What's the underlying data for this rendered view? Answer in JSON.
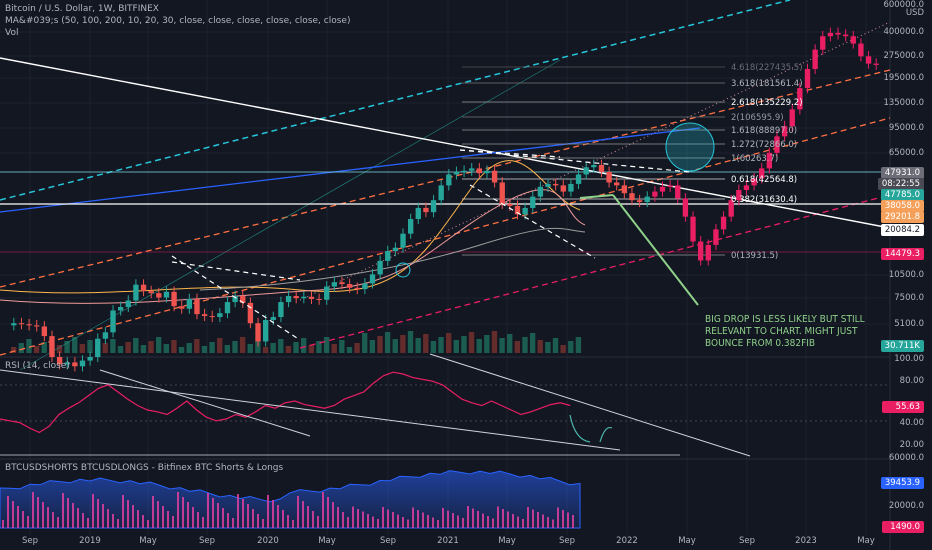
{
  "header": {
    "symbol": "Bitcoin / U.S. Dollar, 1W, BITFINEX",
    "ma_line": "MA&#039;s (50, 100, 200, 10, 20, 30, close, close, close, close, close, close)",
    "vol": "Vol"
  },
  "price_axis": {
    "unit": "USD",
    "ticks": [
      "400000.0",
      "275000.0",
      "195000.0",
      "135000.0",
      "95000.0",
      "65000.0",
      "10500.0",
      "7500.0",
      "5100.0"
    ],
    "top_tick": "600000.0"
  },
  "price_tags": [
    {
      "label": "47931.0",
      "color": "#6d6d78"
    },
    {
      "label": "08:22:55",
      "color": "#4a4a55"
    },
    {
      "label": "47785.0",
      "color": "#26a69a"
    },
    {
      "label": "38058.0",
      "color": "#f5a05a"
    },
    {
      "label": "29201.8",
      "color": "#f5a05a"
    },
    {
      "label": "20084.2",
      "color": "#ffffff"
    },
    {
      "label": "14479.3",
      "color": "#e91e63"
    },
    {
      "label": "30.711K",
      "color": "#26a69a"
    }
  ],
  "fib_levels": [
    {
      "label": "4.618(227435.5)"
    },
    {
      "label": "3.618(181561.4)"
    },
    {
      "label": "2.618(135229.2)"
    },
    {
      "label": "2(106595.9)"
    },
    {
      "label": "1.618(88897.0)"
    },
    {
      "label": "1.272(72866.0)"
    },
    {
      "label": "1(60263.7)"
    },
    {
      "label": "0.618(42564.8)"
    },
    {
      "label": "0.382(31630.4)"
    },
    {
      "label": "0(13931.5)"
    }
  ],
  "annotation": [
    "BIG DROP IS LESS LIKELY BUT STILL",
    "RELEVANT TO CHART. MIGHT JUST",
    "BOUNCE FROM 0.382FIB"
  ],
  "rsi": {
    "title": "RSI (14, close)",
    "ticks": [
      "100.00",
      "80.00",
      "40.00",
      "20.00"
    ],
    "current": "55.63",
    "current_color": "#e91e63"
  },
  "shorts": {
    "title": "BTCUSDSHORTS BTCUSDLONGS - Bitfinex BTC Shorts & Longs",
    "ticks": [
      "60000.0",
      "20000.0"
    ],
    "tag1": "39453.9",
    "tag1_color": "#2962ff",
    "tag2": "1490.0",
    "tag2_color": "#e91e63"
  },
  "time_axis": [
    "Sep",
    "2019",
    "May",
    "Sep",
    "2020",
    "May",
    "Sep",
    "2021",
    "May",
    "Sep",
    "2022",
    "May",
    "Sep",
    "2023",
    "May"
  ],
  "colors": {
    "bg": "#131722",
    "up": "#26a69a",
    "down": "#ef5350",
    "pink": "#e91e63",
    "blue_line": "#2962ff",
    "cyan_dash": "#26c6da",
    "orange_dash": "#ff7043",
    "annotation": "#8fd18a"
  },
  "chart_data": {
    "type": "candlestick",
    "title": "Bitcoin / U.S. Dollar, 1W, BITFINEX",
    "y_scale": "log",
    "ylim": [
      4000,
      600000
    ],
    "x_range": [
      "2018-08",
      "2023-06"
    ],
    "weekly_close_approx": [
      6500,
      6400,
      6300,
      6200,
      5400,
      4000,
      3600,
      3700,
      3500,
      3800,
      4000,
      5200,
      5700,
      7800,
      8200,
      9000,
      11300,
      10300,
      10000,
      9400,
      10200,
      8300,
      8000,
      9200,
      7400,
      7200,
      7100,
      7500,
      8800,
      9600,
      8700,
      6500,
      5000,
      6800,
      7100,
      8800,
      9600,
      9300,
      9500,
      9200,
      9100,
      11000,
      11700,
      11400,
      10800,
      10600,
      11500,
      13100,
      15900,
      18300,
      19200,
      23500,
      29000,
      34000,
      32000,
      38000,
      47000,
      55000,
      57000,
      58000,
      60000,
      56000,
      58000,
      49000,
      36000,
      35000,
      31000,
      34000,
      40000,
      46000,
      48000,
      47000,
      43000,
      48000,
      55000,
      61000,
      63000,
      57000,
      49000,
      47000,
      42000,
      38000,
      37000,
      40000,
      43000,
      46000,
      47000,
      39000,
      30000,
      21000,
      16000,
      20000,
      25000,
      30000,
      38000,
      44000,
      47000,
      52000,
      60000,
      75000,
      95000,
      110000,
      140000,
      190000,
      250000,
      330000,
      400000,
      420000,
      410000,
      400000,
      360000,
      300000,
      270000,
      265000
    ],
    "fib_levels": {
      "0": 13931.5,
      "0.382": 31630.4,
      "0.618": 42564.8,
      "1": 60263.7,
      "1.272": 72866.0,
      "1.618": 88897.0,
      "2": 106595.9,
      "2.618": 135229.2,
      "3.618": 181561.4,
      "4.618": 227435.5
    },
    "rsi": [
      40,
      38,
      36,
      30,
      25,
      32,
      45,
      52,
      58,
      66,
      74,
      78,
      70,
      62,
      55,
      50,
      48,
      45,
      52,
      60,
      50,
      42,
      38,
      40,
      45,
      42,
      48,
      55,
      52,
      58,
      60,
      56,
      54,
      52,
      55,
      62,
      66,
      70,
      80,
      88,
      92,
      90,
      86,
      84,
      82,
      78,
      70,
      62,
      58,
      55,
      60,
      55,
      50,
      45,
      48,
      52,
      56,
      58,
      55
    ],
    "rsi_current": 55.63,
    "shorts_longs_current": [
      39453.9,
      1490.0
    ]
  }
}
